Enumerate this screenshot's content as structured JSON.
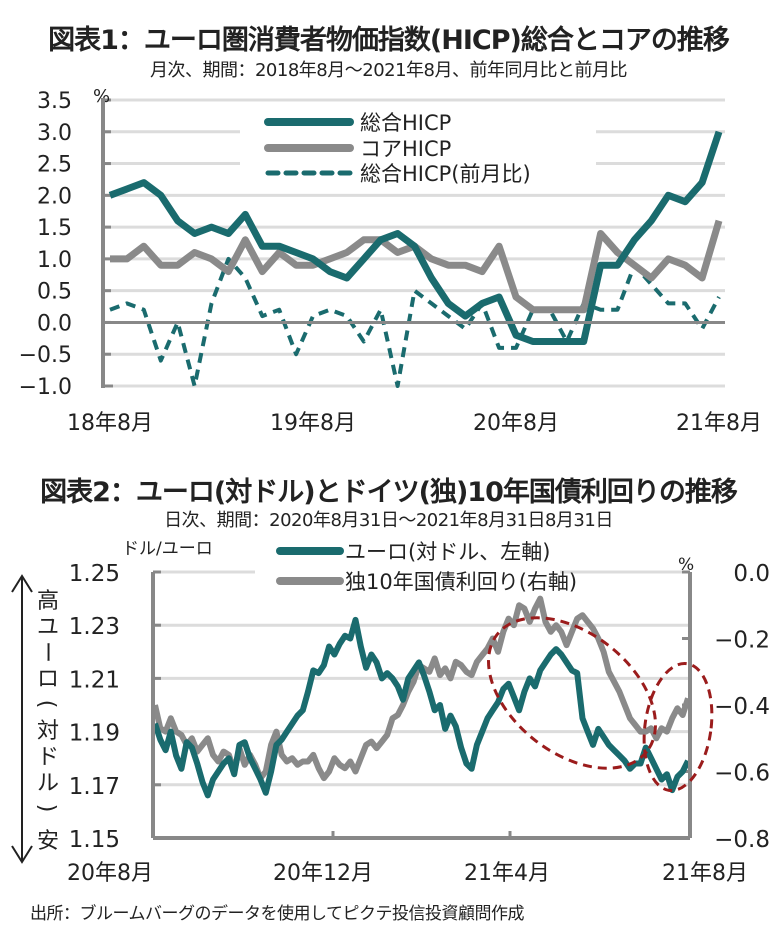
{
  "chart1": {
    "title": "図表1：ユーロ圏消費者物価指数(HICP)総合とコアの推移",
    "subtitle": "月次、期間：2018年8月～2021年8月、前年同月比と前月比",
    "chart_data": {
      "type": "line",
      "title": "図表1：ユーロ圏消費者物価指数(HICP)総合とコアの推移",
      "subtitle": "月次、期間：2018年8月～2021年8月、前年同月比と前月比",
      "ylabel": "%",
      "xlabel": "",
      "ylim": [
        -1.0,
        3.5
      ],
      "yticks": [
        3.5,
        3.0,
        2.5,
        2.0,
        1.5,
        1.0,
        0.5,
        0.0,
        -0.5,
        -1.0
      ],
      "ytick_labels": [
        "3.5",
        "3.0",
        "2.5",
        "2.0",
        "1.5",
        "1.0",
        "0.5",
        "0.0",
        "-0.5",
        "-1.0"
      ],
      "x_start": "2018-08",
      "x_end": "2021-08",
      "xtick_labels": [
        {
          "index": 0,
          "label": "18年8月"
        },
        {
          "index": 12,
          "label": "19年8月"
        },
        {
          "index": 24,
          "label": "20年8月"
        },
        {
          "index": 36,
          "label": "21年8月"
        }
      ],
      "grid": true,
      "legend_position": "top-center",
      "series": [
        {
          "name": "総合HICP",
          "style": "solid",
          "color": "#1a6b6e",
          "values": [
            2.0,
            2.1,
            2.2,
            2.0,
            1.6,
            1.4,
            1.5,
            1.4,
            1.7,
            1.2,
            1.2,
            1.1,
            1.0,
            0.8,
            0.7,
            1.0,
            1.3,
            1.4,
            1.2,
            0.7,
            0.3,
            0.1,
            0.3,
            0.4,
            -0.2,
            -0.3,
            -0.3,
            -0.3,
            -0.3,
            0.9,
            0.9,
            1.3,
            1.6,
            2.0,
            1.9,
            2.2,
            3.0
          ]
        },
        {
          "name": "コアHICP",
          "style": "solid",
          "color": "#8a8a8a",
          "values": [
            1.0,
            1.0,
            1.2,
            0.9,
            0.9,
            1.1,
            1.0,
            0.8,
            1.3,
            0.8,
            1.1,
            0.9,
            0.9,
            1.0,
            1.1,
            1.3,
            1.3,
            1.1,
            1.2,
            1.0,
            0.9,
            0.9,
            0.8,
            1.2,
            0.4,
            0.2,
            0.2,
            0.2,
            0.2,
            1.4,
            1.1,
            0.9,
            0.7,
            1.0,
            0.9,
            0.7,
            1.6
          ]
        },
        {
          "name": "総合HICP(前月比)",
          "style": "dashed",
          "color": "#1a6b6e",
          "values": [
            0.2,
            0.3,
            0.2,
            -0.6,
            0.0,
            -1.0,
            0.3,
            1.0,
            0.7,
            0.1,
            0.2,
            -0.5,
            0.1,
            0.2,
            0.1,
            -0.3,
            0.2,
            -1.0,
            0.5,
            0.3,
            0.1,
            -0.1,
            0.3,
            -0.4,
            -0.4,
            0.2,
            0.2,
            -0.3,
            0.3,
            0.2,
            0.2,
            0.9,
            0.6,
            0.3,
            0.3,
            -0.1,
            0.4
          ]
        }
      ]
    }
  },
  "chart2": {
    "title": "図表2：ユーロ(対ドル)とドイツ(独)10年国債利回りの推移",
    "subtitle": "日次、期間：2020年8月31日～2021年8月31日8月31日",
    "left_axis_unit": "ドル/ユーロ",
    "right_axis_unit": "%",
    "side_label_high": "高",
    "side_label_middle": "ユーロ(対ドル)",
    "side_label_low": "安",
    "chart_data": {
      "type": "line",
      "title": "図表2：ユーロ(対ドル)とドイツ(独)10年国債利回りの推移",
      "subtitle": "日次、期間：2020年8月31日～2021年8月31日8月31日",
      "ylabel_left": "ドル/ユーロ",
      "ylabel_right": "%",
      "ylim_left": [
        1.15,
        1.25
      ],
      "ylim_right": [
        -0.8,
        0.0
      ],
      "yticks_left": [
        "1.25",
        "1.23",
        "1.21",
        "1.19",
        "1.17",
        "1.15"
      ],
      "yticks_right": [
        "0.0",
        "-0.2",
        "-0.4",
        "-0.6",
        "-0.8"
      ],
      "x_start": "2020-08-31",
      "x_end": "2021-08-31",
      "xtick_labels": [
        "20年8月",
        "20年12月",
        "21年4月",
        "21年8月"
      ],
      "grid": true,
      "legend_position": "top-center",
      "annotations": [
        "dashed red ellipse around Apr–Jul 2021 divergence",
        "dashed red ellipse around Aug 2021"
      ],
      "series": [
        {
          "name": "ユーロ(対ドル、左軸)",
          "axis": "left",
          "color": "#1a6b6e",
          "values": [
            1.193,
            1.187,
            1.183,
            1.19,
            1.181,
            1.176,
            1.186,
            1.184,
            1.178,
            1.171,
            1.166,
            1.172,
            1.175,
            1.178,
            1.18,
            1.174,
            1.185,
            1.186,
            1.18,
            1.176,
            1.172,
            1.167,
            1.175,
            1.185,
            1.187,
            1.19,
            1.193,
            1.196,
            1.198,
            1.205,
            1.213,
            1.212,
            1.215,
            1.222,
            1.219,
            1.223,
            1.226,
            1.225,
            1.232,
            1.222,
            1.214,
            1.219,
            1.216,
            1.21,
            1.212,
            1.21,
            1.207,
            1.202,
            1.21,
            1.213,
            1.216,
            1.211,
            1.205,
            1.198,
            1.2,
            1.191,
            1.196,
            1.192,
            1.184,
            1.178,
            1.176,
            1.185,
            1.19,
            1.195,
            1.198,
            1.201,
            1.206,
            1.208,
            1.203,
            1.198,
            1.205,
            1.21,
            1.207,
            1.213,
            1.216,
            1.219,
            1.221,
            1.219,
            1.216,
            1.213,
            1.212,
            1.195,
            1.19,
            1.185,
            1.191,
            1.188,
            1.185,
            1.183,
            1.181,
            1.179,
            1.176,
            1.178,
            1.178,
            1.184,
            1.18,
            1.176,
            1.172,
            1.174,
            1.168,
            1.173,
            1.175,
            1.179
          ]
        },
        {
          "name": "独10年国債利回り(右軸)",
          "axis": "right",
          "color": "#8a8a8a",
          "values": [
            -0.4,
            -0.47,
            -0.48,
            -0.44,
            -0.48,
            -0.49,
            -0.52,
            -0.5,
            -0.54,
            -0.52,
            -0.5,
            -0.55,
            -0.57,
            -0.54,
            -0.55,
            -0.6,
            -0.53,
            -0.58,
            -0.55,
            -0.58,
            -0.62,
            -0.6,
            -0.52,
            -0.48,
            -0.55,
            -0.57,
            -0.56,
            -0.58,
            -0.57,
            -0.57,
            -0.55,
            -0.59,
            -0.62,
            -0.6,
            -0.56,
            -0.58,
            -0.59,
            -0.57,
            -0.6,
            -0.56,
            -0.52,
            -0.51,
            -0.53,
            -0.51,
            -0.49,
            -0.44,
            -0.43,
            -0.4,
            -0.36,
            -0.33,
            -0.28,
            -0.29,
            -0.3,
            -0.26,
            -0.31,
            -0.29,
            -0.32,
            -0.27,
            -0.28,
            -0.3,
            -0.31,
            -0.27,
            -0.25,
            -0.23,
            -0.2,
            -0.24,
            -0.18,
            -0.14,
            -0.16,
            -0.1,
            -0.11,
            -0.15,
            -0.11,
            -0.08,
            -0.15,
            -0.18,
            -0.16,
            -0.18,
            -0.22,
            -0.18,
            -0.14,
            -0.13,
            -0.15,
            -0.17,
            -0.2,
            -0.24,
            -0.3,
            -0.33,
            -0.36,
            -0.4,
            -0.44,
            -0.46,
            -0.48,
            -0.48,
            -0.47,
            -0.5,
            -0.47,
            -0.48,
            -0.44,
            -0.41,
            -0.43,
            -0.38
          ]
        }
      ]
    }
  },
  "source": "出所：ブルームバーグのデータを使用してピクテ投信投資顧問作成"
}
